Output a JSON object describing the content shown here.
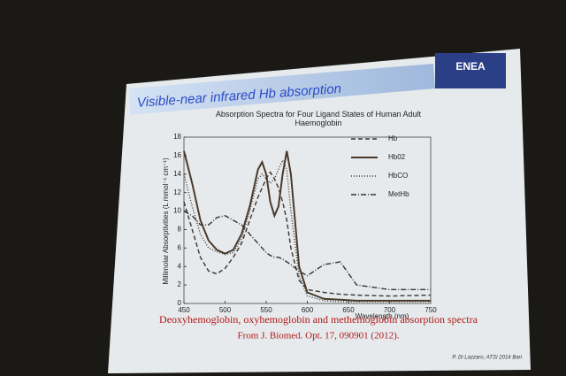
{
  "slide_title": "Visible-near infrared Hb absorption",
  "logo": "ENEA",
  "chart_data": {
    "type": "line",
    "title": "Absorption Spectra for Four Ligand States of Human Adult Haemoglobin",
    "xlabel": "Wavelength (nm)",
    "ylabel": "Millimolar Absorptivities (L mmol⁻¹ cm⁻¹)",
    "x": [
      450,
      460,
      470,
      480,
      490,
      500,
      510,
      520,
      530,
      540,
      545,
      550,
      555,
      560,
      565,
      570,
      575,
      580,
      590,
      600,
      620,
      640,
      660,
      700,
      750
    ],
    "series": [
      {
        "name": "Hb",
        "color": "#3a3530",
        "linestyle": "dashed",
        "values": [
          11,
          8,
          5,
          3.5,
          3.2,
          3.8,
          5,
          6.5,
          9,
          11.5,
          12.5,
          13.5,
          14.2,
          13.5,
          12.5,
          11,
          9,
          6,
          2.5,
          1.5,
          1.2,
          1,
          0.9,
          0.8,
          0.9
        ]
      },
      {
        "name": "Hb02",
        "color": "#4a3a2c",
        "linestyle": "solid",
        "values": [
          16.5,
          13,
          9,
          6.8,
          5.8,
          5.4,
          5.8,
          7.5,
          10.5,
          14.5,
          15.3,
          14,
          11,
          9.5,
          10.5,
          14,
          16.5,
          14,
          4,
          1.2,
          0.5,
          0.4,
          0.3,
          0.3,
          0.3
        ]
      },
      {
        "name": "HbCO",
        "color": "#3a3530",
        "linestyle": "dotted",
        "values": [
          14,
          10.5,
          7.5,
          6,
          5.6,
          5.3,
          5.5,
          7,
          10,
          13.5,
          14,
          13.5,
          13,
          13.5,
          14.5,
          15.5,
          14.5,
          10,
          3,
          0.8,
          0.3,
          0.2,
          0.2,
          0.2,
          0.2
        ]
      },
      {
        "name": "MetHb",
        "color": "#3a3530",
        "linestyle": "dashdot",
        "values": [
          10,
          9.5,
          8.5,
          8.5,
          9.3,
          9.5,
          9,
          8.5,
          7.5,
          6.5,
          6,
          5.5,
          5.2,
          5,
          5,
          4.8,
          4.5,
          4.2,
          3.5,
          3,
          4.2,
          4.5,
          2,
          1.5,
          1.5
        ]
      }
    ],
    "xlim": [
      450,
      750
    ],
    "xticks": [
      450,
      500,
      550,
      600,
      650,
      700,
      750
    ],
    "ylim": [
      0,
      18
    ],
    "yticks": [
      0,
      2,
      4,
      6,
      8,
      10,
      12,
      14,
      16,
      18
    ],
    "grid": false,
    "legend": "upper right"
  },
  "caption": [
    "Deoxyhemoglobin, oxyhemoglobin and methemoglobin absorption spectra",
    "From J. Biomed. Opt. 17, 090901 (2012)."
  ],
  "credit": "P. Di Lazzaro, ATSI 2014 Bari"
}
